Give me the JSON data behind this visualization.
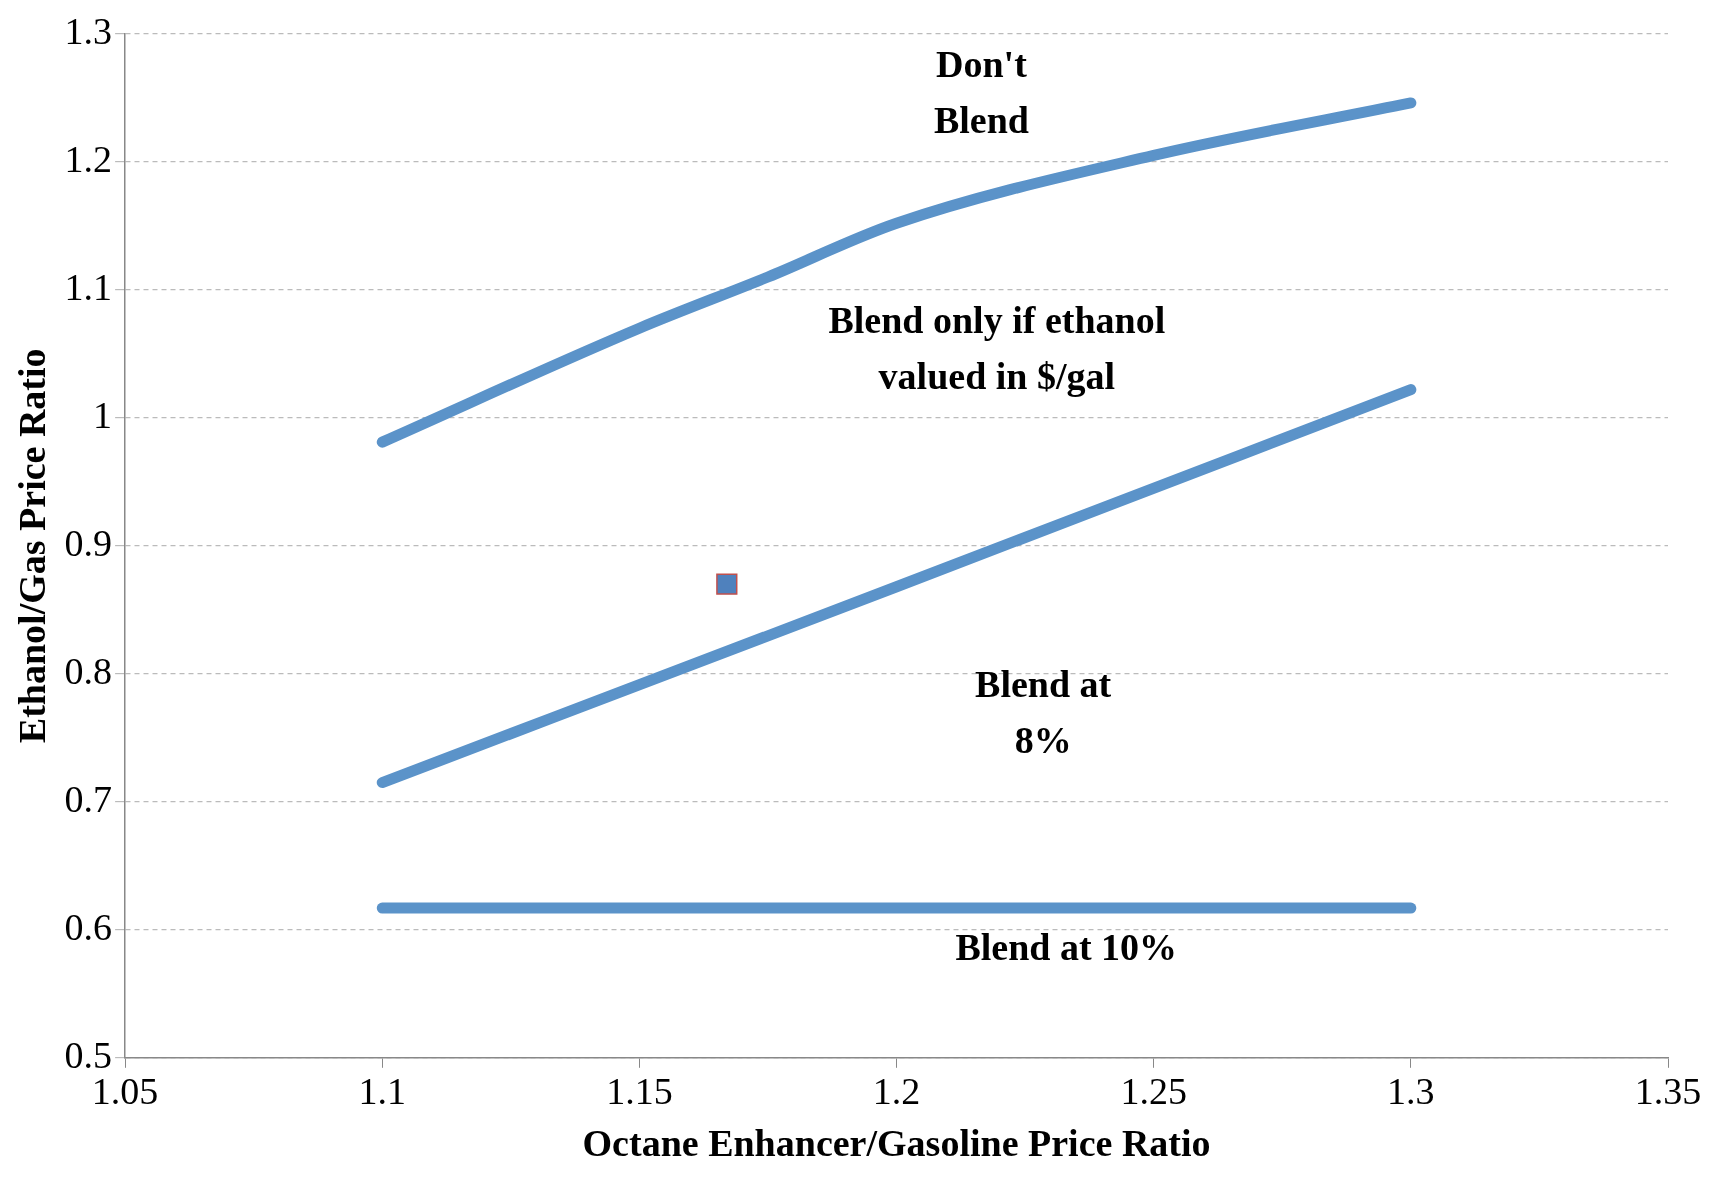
{
  "chart_data": {
    "type": "line",
    "xlabel": "Octane Enhancer/Gasoline Price Ratio",
    "ylabel": "Ethanol/Gas Price Ratio",
    "xlim": [
      1.05,
      1.35
    ],
    "xticks": [
      1.05,
      1.1,
      1.15,
      1.2,
      1.25,
      1.3,
      1.35
    ],
    "ylim": [
      0.5,
      1.3
    ],
    "yticks": [
      0.5,
      0.6,
      0.7,
      0.8,
      0.9,
      1,
      1.1,
      1.2,
      1.3
    ],
    "grid": "y",
    "legend": false,
    "line_style": "solid",
    "marker": "none",
    "series": [
      {
        "color": "#5b93c9",
        "x": [
          1.1,
          1.15,
          1.175,
          1.2,
          1.25,
          1.3
        ],
        "values": [
          0.981,
          1.07,
          1.11,
          1.152,
          1.205,
          1.246
        ]
      },
      {
        "color": "#5b93c9",
        "x": [
          1.1,
          1.2,
          1.3
        ],
        "values": [
          0.715,
          0.868,
          1.022
        ]
      },
      {
        "color": "#5b93c9",
        "x": [
          1.1,
          1.3
        ],
        "values": [
          0.617,
          0.617
        ]
      },
      {
        "type": "scatter",
        "marker": "square",
        "color": "#4f81bd",
        "x": [
          1.167
        ],
        "values": [
          0.87
        ]
      }
    ],
    "annotations": [
      "Don't\nBlend",
      "Blend only if ethanol\nvalued in $/gal",
      "Blend at\n8%",
      "Blend at 10%"
    ]
  }
}
